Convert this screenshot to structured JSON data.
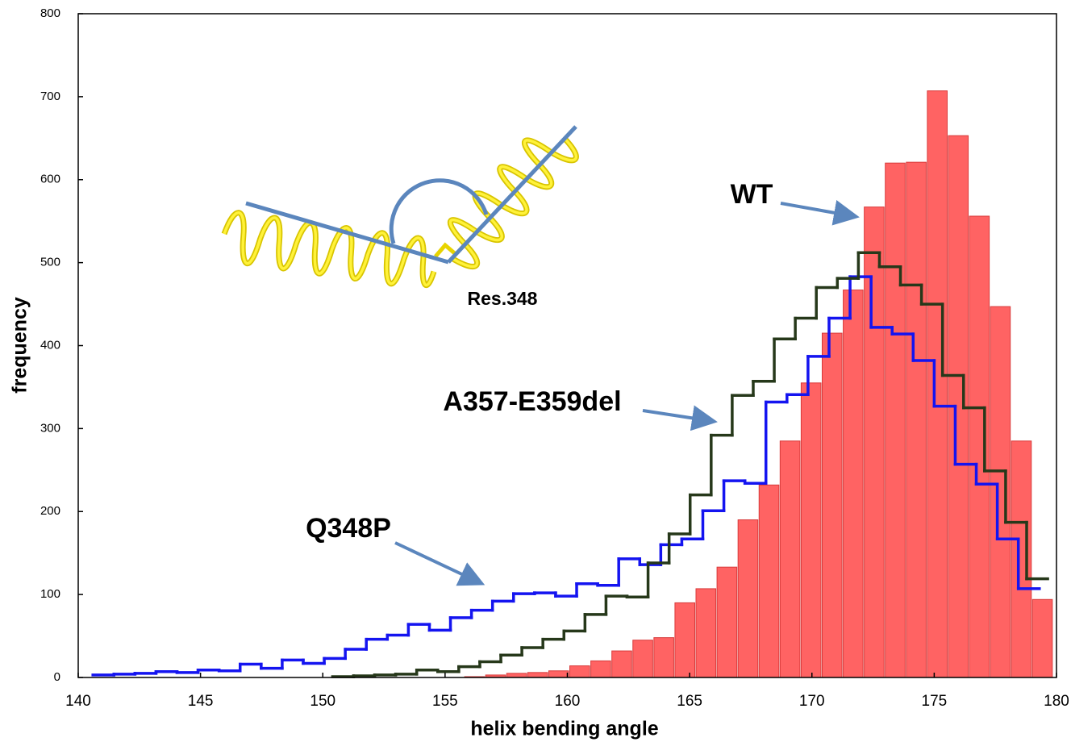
{
  "chart_data": {
    "type": "histogram",
    "xlabel": "helix bending angle",
    "ylabel": "frequency",
    "xlim": [
      140,
      180
    ],
    "ylim": [
      0,
      800
    ],
    "xticks": [
      140,
      145,
      150,
      155,
      160,
      165,
      170,
      175,
      180
    ],
    "yticks": [
      0,
      100,
      200,
      300,
      400,
      500,
      600,
      700,
      800
    ],
    "grid": false,
    "series": [
      {
        "name": "WT",
        "style": "bar",
        "color": "#ff6363",
        "bins": [
          155.8,
          156.66,
          157.52,
          158.38,
          159.24,
          160.1,
          160.96,
          161.82,
          162.68,
          163.54,
          164.4,
          165.26,
          166.12,
          166.98,
          167.84,
          168.7,
          169.56,
          170.42,
          171.28,
          172.14,
          173.0,
          173.86,
          174.72,
          175.58,
          176.44,
          177.3,
          178.16,
          179.02,
          179.88
        ],
        "values": [
          1,
          3,
          5,
          6,
          8,
          14,
          20,
          32,
          45,
          48,
          90,
          107,
          133,
          190,
          232,
          285,
          355,
          415,
          467,
          567,
          620,
          621,
          707,
          653,
          556,
          447,
          285,
          94
        ]
      },
      {
        "name": "Q348P",
        "style": "step",
        "color": "#1414f0",
        "bins": [
          140.6,
          141.46,
          142.32,
          143.18,
          144.04,
          144.9,
          145.76,
          146.62,
          147.48,
          148.34,
          149.2,
          150.06,
          150.92,
          151.78,
          152.64,
          153.5,
          154.36,
          155.22,
          156.08,
          156.94,
          157.8,
          158.66,
          159.52,
          160.38,
          161.24,
          162.1,
          162.96,
          163.82,
          164.68,
          165.54,
          166.4,
          167.26,
          168.12,
          168.98,
          169.84,
          170.7,
          171.56,
          172.42,
          173.28,
          174.14,
          175.0,
          175.86,
          176.72,
          177.58,
          178.44,
          179.3
        ],
        "values": [
          3,
          4,
          5,
          7,
          6,
          9,
          8,
          16,
          11,
          21,
          17,
          23,
          34,
          46,
          51,
          64,
          57,
          72,
          81,
          92,
          101,
          102,
          98,
          113,
          111,
          143,
          136,
          160,
          167,
          201,
          237,
          234,
          332,
          341,
          387,
          433,
          483,
          422,
          414,
          382,
          327,
          257,
          233,
          167,
          107
        ]
      },
      {
        "name": "A357-E359del",
        "style": "step",
        "color": "#26381a",
        "bins": [
          150.4,
          151.26,
          152.12,
          152.98,
          153.84,
          154.7,
          155.56,
          156.42,
          157.28,
          158.14,
          159.0,
          159.86,
          160.72,
          161.58,
          162.44,
          163.3,
          164.16,
          165.02,
          165.88,
          166.74,
          167.6,
          168.46,
          169.32,
          170.18,
          171.04,
          171.9,
          172.76,
          173.62,
          174.48,
          175.34,
          176.2,
          177.06,
          177.92,
          178.78,
          179.64
        ],
        "values": [
          1,
          2,
          3,
          4,
          9,
          7,
          13,
          19,
          27,
          36,
          46,
          56,
          76,
          98,
          97,
          138,
          173,
          220,
          292,
          340,
          357,
          408,
          433,
          470,
          481,
          512,
          495,
          473,
          450,
          364,
          325,
          249,
          187,
          119
        ]
      }
    ],
    "annotations": [
      {
        "text": "Res.348"
      }
    ]
  }
}
